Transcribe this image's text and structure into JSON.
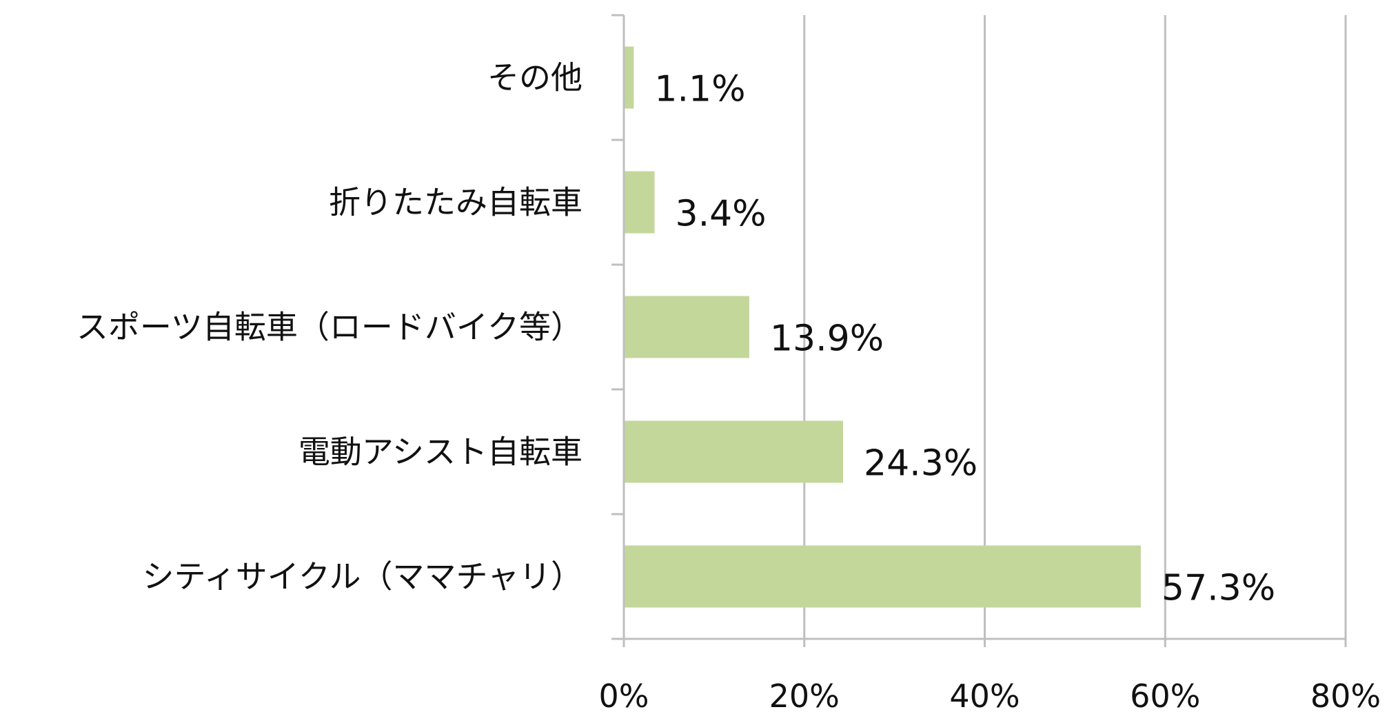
{
  "chart_data": {
    "type": "bar",
    "orientation": "horizontal",
    "categories": [
      "その他",
      "折りたたみ自転車",
      "スポーツ自転車（ロードバイク等）",
      "電動アシスト自転車",
      "シティサイクル（ママチャリ）"
    ],
    "values": [
      1.1,
      3.4,
      13.9,
      24.3,
      57.3
    ],
    "value_labels": [
      "1.1%",
      "3.4%",
      "13.9%",
      "24.3%",
      "57.3%"
    ],
    "xlim": [
      0,
      80
    ],
    "x_ticks": [
      0,
      20,
      40,
      60,
      80
    ],
    "x_tick_labels": [
      "0%",
      "20%",
      "40%",
      "60%",
      "80%"
    ],
    "grid": "vertical",
    "legend": "none",
    "bar_color": "#c4d79b",
    "grid_color": "#bfbfbf",
    "title": "",
    "xlabel": "",
    "ylabel": ""
  }
}
